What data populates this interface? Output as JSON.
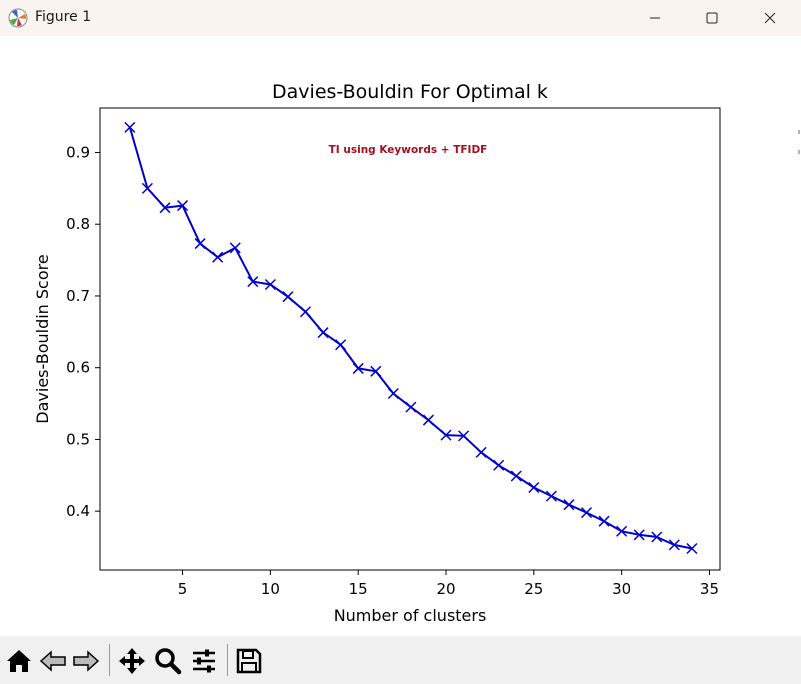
{
  "window": {
    "title": "Figure 1",
    "icons": [
      "matplotlib-icon",
      "minimize-icon",
      "maximize-icon",
      "close-icon"
    ]
  },
  "toolbar": {
    "buttons": [
      "home-icon",
      "back-icon",
      "forward-icon",
      "pan-icon",
      "zoom-icon",
      "configure-subplots-icon",
      "save-icon"
    ]
  },
  "colors": {
    "line": "#0000cc",
    "annotation": "#a01020",
    "titlebar": "#f9f4f0",
    "toolbar": "#f0f0f0"
  },
  "chart_data": {
    "type": "line",
    "title": "Davies-Bouldin For Optimal k",
    "xlabel": "Number of clusters",
    "ylabel": "Davies-Bouldin Score",
    "annotation": "TI using Keywords + TFIDF",
    "xlim": [
      0.3,
      35.6
    ],
    "ylim": [
      0.318,
      0.962
    ],
    "xticks": [
      5,
      10,
      15,
      20,
      25,
      30,
      35
    ],
    "xtick_labels": [
      "5",
      "10",
      "15",
      "20",
      "25",
      "30",
      "35"
    ],
    "yticks": [
      0.4,
      0.5,
      0.6,
      0.7,
      0.8,
      0.9
    ],
    "ytick_labels": [
      "0.4",
      "0.5",
      "0.6",
      "0.7",
      "0.8",
      "0.9"
    ],
    "marker": "x",
    "grid": false,
    "x": [
      2,
      3,
      4,
      5,
      6,
      7,
      8,
      9,
      10,
      11,
      12,
      13,
      14,
      15,
      16,
      17,
      18,
      19,
      20,
      21,
      22,
      23,
      24,
      25,
      26,
      27,
      28,
      29,
      30,
      31,
      32,
      33,
      34
    ],
    "y": [
      0.935,
      0.85,
      0.823,
      0.826,
      0.773,
      0.754,
      0.767,
      0.72,
      0.716,
      0.699,
      0.678,
      0.649,
      0.632,
      0.599,
      0.595,
      0.564,
      0.545,
      0.527,
      0.506,
      0.505,
      0.482,
      0.464,
      0.449,
      0.433,
      0.421,
      0.409,
      0.398,
      0.386,
      0.372,
      0.367,
      0.364,
      0.353,
      0.348
    ]
  }
}
